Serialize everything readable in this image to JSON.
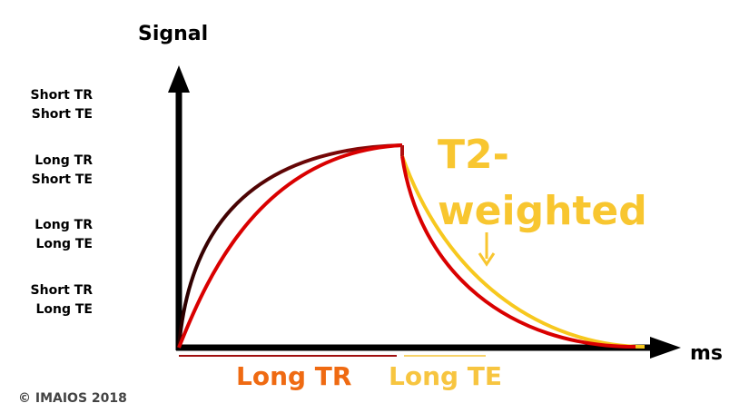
{
  "axes": {
    "y_title": "Signal",
    "x_unit": "ms"
  },
  "sequence_labels": [
    {
      "tr": "Short TR",
      "te": "Short TE"
    },
    {
      "tr": "Long TR",
      "te": "Short TE"
    },
    {
      "tr": "Long TR",
      "te": "Long TE"
    },
    {
      "tr": "Short TR",
      "te": "Long TE"
    }
  ],
  "phases": {
    "tr_label": "Long TR",
    "te_label": "Long TE"
  },
  "weighting": {
    "line1": "T2-",
    "line2": "weighted"
  },
  "copyright": "© IMAIOS 2018",
  "colors": {
    "axis": "#000000",
    "short_t2_curve": "#d90000",
    "long_t2_curve": "#f7c81e",
    "recovery_fast_start": "#2a0000",
    "recovery_fast_end": "#9c0a0a",
    "tr_label": "#ef6a12",
    "te_label": "#f7c540",
    "tr_underline": "#a01010",
    "te_underline": "#f7d36a",
    "weight_label": "#f8c630"
  }
}
